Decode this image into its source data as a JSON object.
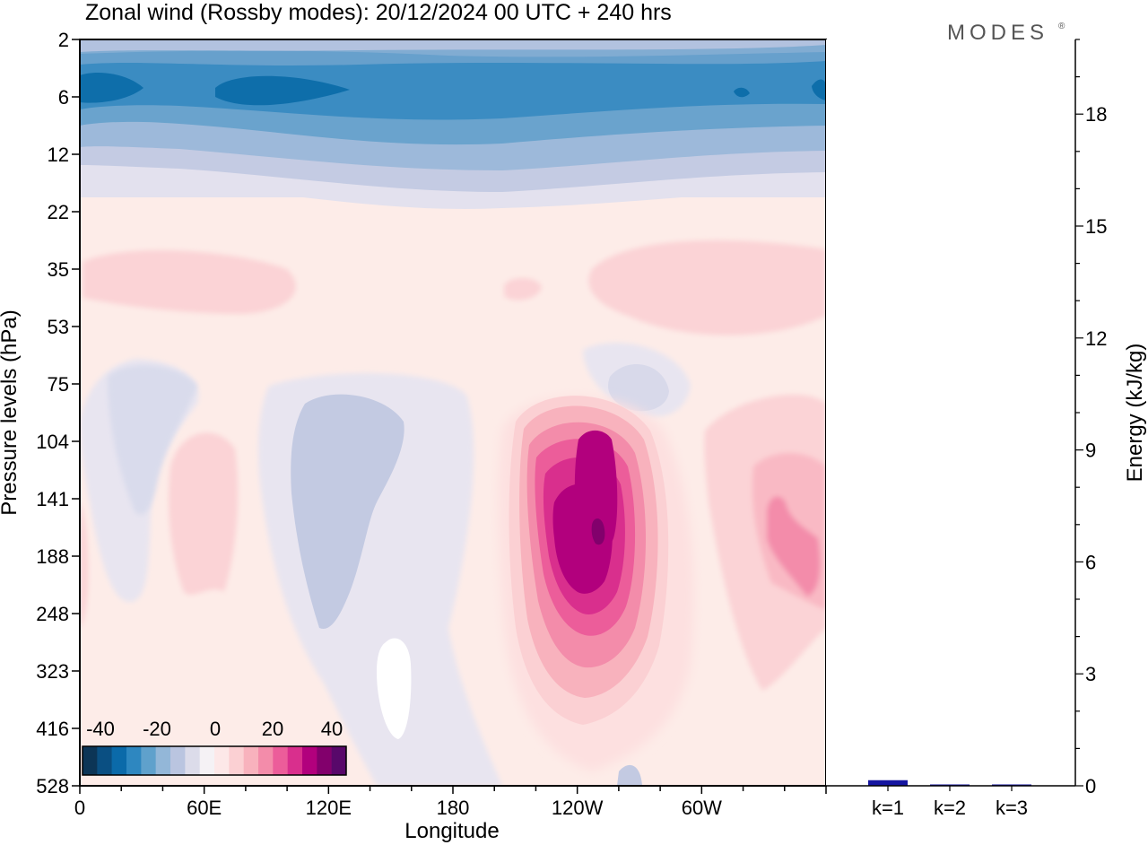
{
  "title": "Zonal wind (Rossby modes):  20/12/2024  00 UTC  + 240 hrs",
  "logo": "MODES",
  "logo_mark": "®",
  "chart_data": [
    {
      "type": "heatmap",
      "variable": "Zonal wind (Rossby modes)",
      "xlabel": "Longitude",
      "ylabel": "Pressure levels (hPa)",
      "x_ticks": [
        "0",
        "60E",
        "120E",
        "180",
        "120W",
        "60W"
      ],
      "y_levels": [
        2,
        6,
        12,
        22,
        35,
        53,
        75,
        104,
        141,
        188,
        248,
        323,
        416,
        528
      ],
      "y_ticks": [
        "2",
        "6",
        "12",
        "22",
        "35",
        "53",
        "75",
        "104",
        "141",
        "188",
        "248",
        "323",
        "416",
        "528"
      ],
      "colorbar": {
        "ticks": [
          "-40",
          "-20",
          "0",
          "20",
          "40"
        ],
        "colors": [
          "#0c3556",
          "#0a4f82",
          "#0b6aa9",
          "#2e87c0",
          "#5fa1cc",
          "#93b7d8",
          "#bac5e0",
          "#dcdcea",
          "#f5f2f5",
          "#fde8e8",
          "#fbd0d3",
          "#f8b2bd",
          "#f38caa",
          "#ec5d9a",
          "#d92f8d",
          "#b2007d",
          "#82006c",
          "#58086a"
        ]
      },
      "features": [
        {
          "wind": -40,
          "longitude": "40E",
          "pressure": 6
        },
        {
          "wind": -30,
          "longitude": "0-360",
          "pressure": 6
        },
        {
          "wind": 5,
          "longitude": "0-360",
          "pressure": 35
        },
        {
          "wind": -5,
          "longitude": "120E",
          "pressure": 141
        },
        {
          "wind": 40,
          "longitude": "110W",
          "pressure": 160
        },
        {
          "wind": 20,
          "longitude": "10W",
          "pressure": 170
        }
      ]
    },
    {
      "type": "bar",
      "ylabel": "Energy (kJ/kg)",
      "categories": [
        "k=1",
        "k=2",
        "k=3"
      ],
      "values": [
        0.15,
        0.02,
        0.02
      ],
      "ylim": [
        0,
        20
      ],
      "y_ticks": [
        "0",
        "3",
        "6",
        "9",
        "12",
        "15",
        "18"
      ],
      "bar_color": "#1515a0"
    }
  ]
}
